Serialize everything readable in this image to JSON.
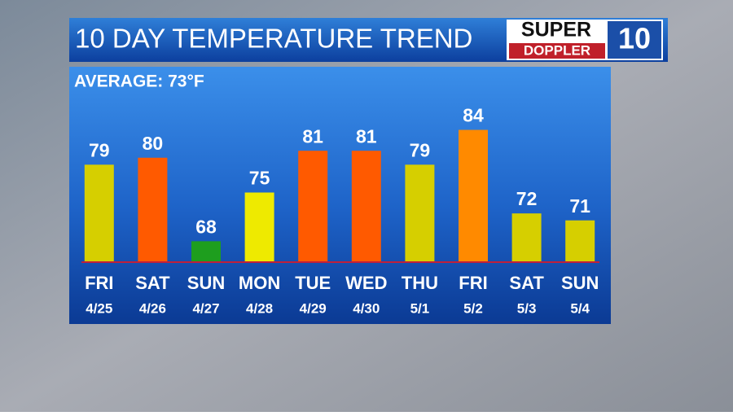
{
  "logo": {
    "line1": "SUPER",
    "line2": "DOPPLER",
    "mark": "10"
  },
  "chart_data": {
    "type": "bar",
    "title": "10 DAY TEMPERATURE TREND",
    "annotation": "AVERAGE: 73°F",
    "categories": [
      "FRI",
      "SAT",
      "SUN",
      "MON",
      "TUE",
      "WED",
      "THU",
      "FRI",
      "SAT",
      "SUN"
    ],
    "dates": [
      "4/25",
      "4/26",
      "4/27",
      "4/28",
      "4/29",
      "4/30",
      "5/1",
      "5/2",
      "5/3",
      "5/4"
    ],
    "values": [
      79,
      80,
      68,
      75,
      81,
      81,
      79,
      84,
      72,
      71
    ],
    "colors": [
      "#d6cf00",
      "#ff5a00",
      "#1e9e1e",
      "#eeea00",
      "#ff5a00",
      "#ff5a00",
      "#d6cf00",
      "#ff8a00",
      "#d6cf00",
      "#d6cf00"
    ],
    "ylim": [
      65,
      85
    ],
    "baseline_color": "#c0203a"
  }
}
